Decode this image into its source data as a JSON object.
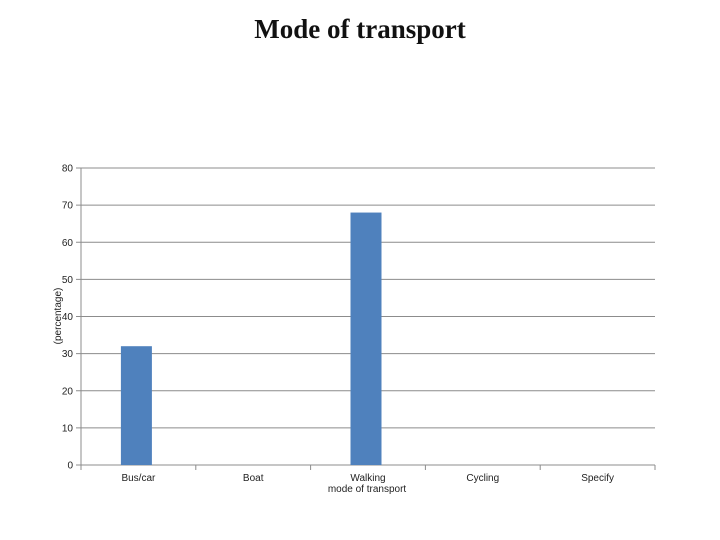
{
  "chart_data": {
    "type": "bar",
    "title": "Mode of transport",
    "xlabel": "mode of transport",
    "ylabel": "(percentage)",
    "categories": [
      "Bus/car",
      "Boat",
      "Walking",
      "Cycling",
      "Specify"
    ],
    "values": [
      32,
      0,
      68,
      0,
      0
    ],
    "ylim": [
      0,
      80
    ],
    "yticks": [
      0,
      10,
      20,
      30,
      40,
      50,
      60,
      70,
      80
    ],
    "grid": true,
    "legend": "none",
    "bar_color": "#4F81BD"
  }
}
